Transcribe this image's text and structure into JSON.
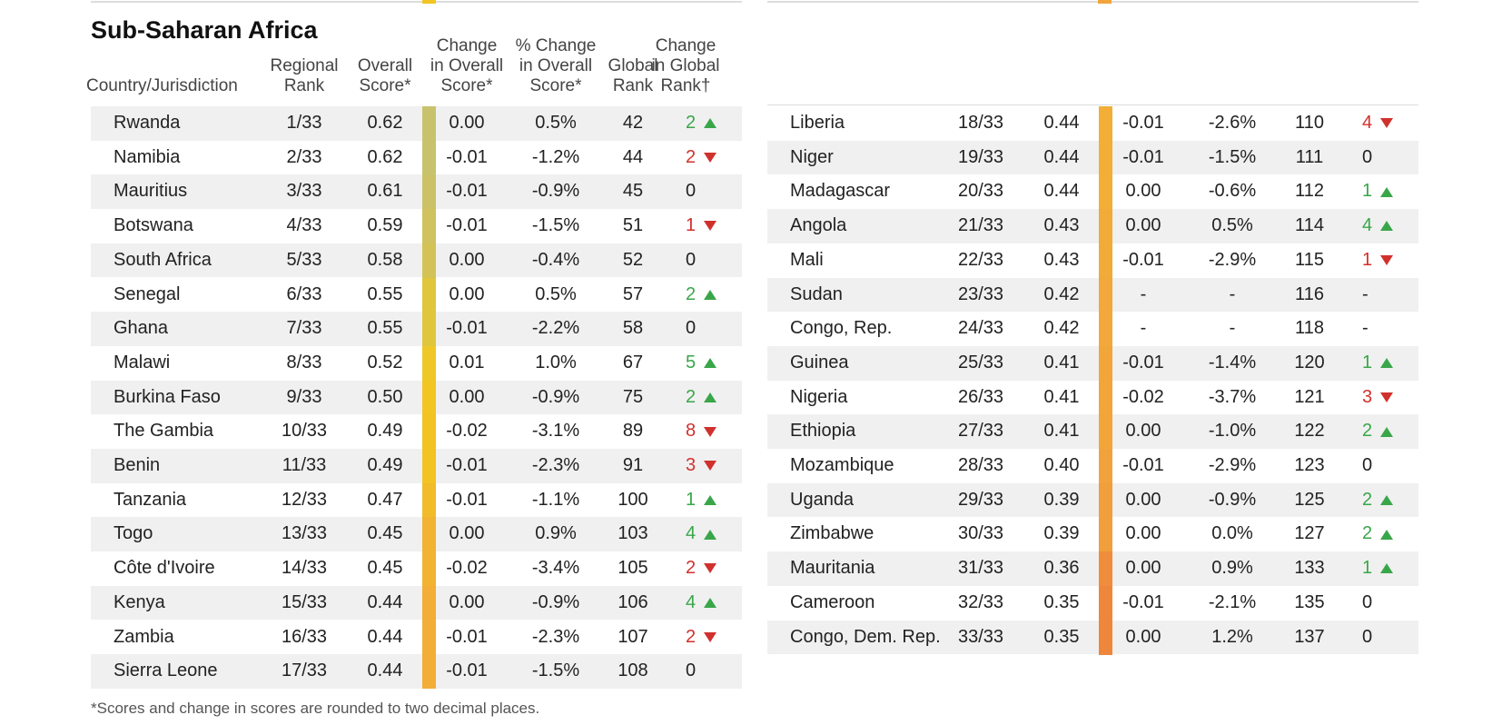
{
  "title": "Sub-Saharan Africa",
  "headers": [
    [
      "Country/Jurisdiction"
    ],
    [
      "Regional",
      "Rank"
    ],
    [
      "Overall",
      "Score*"
    ],
    [
      "Change",
      "in Overall",
      "Score*"
    ],
    [
      "% Change",
      "in Overall",
      "Score*"
    ],
    [
      "Global",
      "Rank"
    ],
    [
      "Change",
      "in Global",
      "Rank†"
    ]
  ],
  "rows": [
    {
      "cells": [
        "Rwanda",
        "1/33",
        "0.62",
        "0.00",
        "0.5%",
        "42",
        "2"
      ],
      "trend": "up",
      "color": "#c9c26d"
    },
    {
      "cells": [
        "Namibia",
        "2/33",
        "0.62",
        "-0.01",
        "-1.2%",
        "44",
        "2"
      ],
      "trend": "down",
      "color": "#c9c26d"
    },
    {
      "cells": [
        "Mauritius",
        "3/33",
        "0.61",
        "-0.01",
        "-0.9%",
        "45",
        "0"
      ],
      "trend": null,
      "color": "#cbc268"
    },
    {
      "cells": [
        "Botswana",
        "4/33",
        "0.59",
        "-0.01",
        "-1.5%",
        "51",
        "1"
      ],
      "trend": "down",
      "color": "#cfc25f"
    },
    {
      "cells": [
        "South Africa",
        "5/33",
        "0.58",
        "0.00",
        "-0.4%",
        "52",
        "0"
      ],
      "trend": null,
      "color": "#d3c356"
    },
    {
      "cells": [
        "Senegal",
        "6/33",
        "0.55",
        "0.00",
        "0.5%",
        "57",
        "2"
      ],
      "trend": "up",
      "color": "#e0c63c"
    },
    {
      "cells": [
        "Ghana",
        "7/33",
        "0.55",
        "-0.01",
        "-2.2%",
        "58",
        "0"
      ],
      "trend": null,
      "color": "#e0c63c"
    },
    {
      "cells": [
        "Malawi",
        "8/33",
        "0.52",
        "0.01",
        "1.0%",
        "67",
        "5"
      ],
      "trend": "up",
      "color": "#efc827"
    },
    {
      "cells": [
        "Burkina Faso",
        "9/33",
        "0.50",
        "0.00",
        "-0.9%",
        "75",
        "2"
      ],
      "trend": "up",
      "color": "#f2c522"
    },
    {
      "cells": [
        "The Gambia",
        "10/33",
        "0.49",
        "-0.02",
        "-3.1%",
        "89",
        "8"
      ],
      "trend": "down",
      "color": "#f2c322"
    },
    {
      "cells": [
        "Benin",
        "11/33",
        "0.49",
        "-0.01",
        "-2.3%",
        "91",
        "3"
      ],
      "trend": "down",
      "color": "#f2c322"
    },
    {
      "cells": [
        "Tanzania",
        "12/33",
        "0.47",
        "-0.01",
        "-1.1%",
        "100",
        "1"
      ],
      "trend": "up",
      "color": "#f2bb2a"
    },
    {
      "cells": [
        "Togo",
        "13/33",
        "0.45",
        "0.00",
        "0.9%",
        "103",
        "4"
      ],
      "trend": "up",
      "color": "#f2b232"
    },
    {
      "cells": [
        "Côte d'Ivoire",
        "14/33",
        "0.45",
        "-0.02",
        "-3.4%",
        "105",
        "2"
      ],
      "trend": "down",
      "color": "#f2b232"
    },
    {
      "cells": [
        "Kenya",
        "15/33",
        "0.44",
        "0.00",
        "-0.9%",
        "106",
        "4"
      ],
      "trend": "up",
      "color": "#f2ae36"
    },
    {
      "cells": [
        "Zambia",
        "16/33",
        "0.44",
        "-0.01",
        "-2.3%",
        "107",
        "2"
      ],
      "trend": "down",
      "color": "#f2ae36"
    },
    {
      "cells": [
        "Sierra Leone",
        "17/33",
        "0.44",
        "-0.01",
        "-1.5%",
        "108",
        "0"
      ],
      "trend": null,
      "color": "#f2ae36"
    },
    {
      "cells": [
        "Liberia",
        "18/33",
        "0.44",
        "-0.01",
        "-2.6%",
        "110",
        "4"
      ],
      "trend": "down",
      "color": "#f2ae36"
    },
    {
      "cells": [
        "Niger",
        "19/33",
        "0.44",
        "-0.01",
        "-1.5%",
        "111",
        "0"
      ],
      "trend": null,
      "color": "#f2ae36"
    },
    {
      "cells": [
        "Madagascar",
        "20/33",
        "0.44",
        "0.00",
        "-0.6%",
        "112",
        "1"
      ],
      "trend": "up",
      "color": "#f2ae36"
    },
    {
      "cells": [
        "Angola",
        "21/33",
        "0.43",
        "0.00",
        "0.5%",
        "114",
        "4"
      ],
      "trend": "up",
      "color": "#f2aa38"
    },
    {
      "cells": [
        "Mali",
        "22/33",
        "0.43",
        "-0.01",
        "-2.9%",
        "115",
        "1"
      ],
      "trend": "down",
      "color": "#f2aa38"
    },
    {
      "cells": [
        "Sudan",
        "23/33",
        "0.42",
        "-",
        "-",
        "116",
        "-"
      ],
      "trend": null,
      "color": "#f2a83a"
    },
    {
      "cells": [
        "Congo, Rep.",
        "24/33",
        "0.42",
        "-",
        "-",
        "118",
        "-"
      ],
      "trend": null,
      "color": "#f2a83a"
    },
    {
      "cells": [
        "Guinea",
        "25/33",
        "0.41",
        "-0.01",
        "-1.4%",
        "120",
        "1"
      ],
      "trend": "up",
      "color": "#f2a53b"
    },
    {
      "cells": [
        "Nigeria",
        "26/33",
        "0.41",
        "-0.02",
        "-3.7%",
        "121",
        "3"
      ],
      "trend": "down",
      "color": "#f2a53b"
    },
    {
      "cells": [
        "Ethiopia",
        "27/33",
        "0.41",
        "0.00",
        "-1.0%",
        "122",
        "2"
      ],
      "trend": "up",
      "color": "#f2a53b"
    },
    {
      "cells": [
        "Mozambique",
        "28/33",
        "0.40",
        "-0.01",
        "-2.9%",
        "123",
        "0"
      ],
      "trend": null,
      "color": "#f2a23c"
    },
    {
      "cells": [
        "Uganda",
        "29/33",
        "0.39",
        "0.00",
        "-0.9%",
        "125",
        "2"
      ],
      "trend": "up",
      "color": "#f19e3c"
    },
    {
      "cells": [
        "Zimbabwe",
        "30/33",
        "0.39",
        "0.00",
        "0.0%",
        "127",
        "2"
      ],
      "trend": "up",
      "color": "#f19e3c"
    },
    {
      "cells": [
        "Mauritania",
        "31/33",
        "0.36",
        "0.00",
        "0.9%",
        "133",
        "1"
      ],
      "trend": "up",
      "color": "#ef8d3c"
    },
    {
      "cells": [
        "Cameroon",
        "32/33",
        "0.35",
        "-0.01",
        "-2.1%",
        "135",
        "0"
      ],
      "trend": null,
      "color": "#ee873c"
    },
    {
      "cells": [
        "Congo, Dem. Rep.",
        "33/33",
        "0.35",
        "0.00",
        "1.2%",
        "137",
        "0"
      ],
      "trend": null,
      "color": "#ee873c"
    }
  ],
  "footnote": "*Scores and change in scores are rounded to two decimal places."
}
